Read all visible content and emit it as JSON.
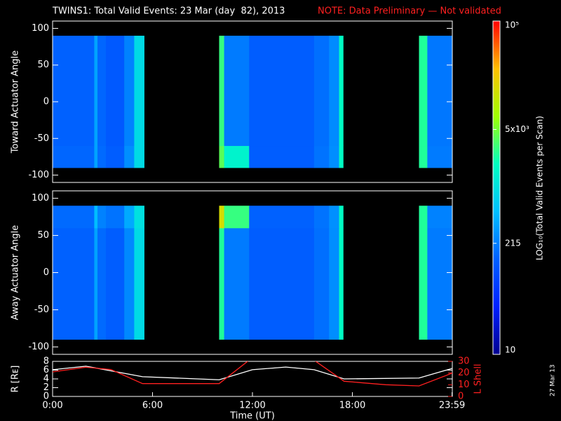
{
  "title": "TWINS1: Total Valid Events: 23 Mar (day  82), 2013",
  "note": "NOTE: Data Preliminary — Not validated",
  "footer_date": "27 Mar 13",
  "colorbar": {
    "label": "LOG₁₀(Total Valid Events per Scan)",
    "lim": [
      10,
      100000
    ],
    "log": true,
    "ticks": [
      {
        "value": 100000,
        "label": "10⁵"
      },
      {
        "value": 5000,
        "label": "5x10³"
      },
      215,
      10
    ],
    "colors": [
      "#000090",
      "#0020ff",
      "#0060ff",
      "#00c0ff",
      "#00ffc0",
      "#a0ff00",
      "#ffc000",
      "#ff0000"
    ]
  },
  "chart_data": [
    {
      "type": "heatmap",
      "ylabel": "Toward Actuator Angle",
      "xlim": [
        0,
        24
      ],
      "ylim": [
        -110,
        110
      ],
      "yticks": [
        -100,
        -50,
        0,
        50,
        100
      ],
      "time_bins": [
        0,
        2.5,
        2.7,
        3.2,
        4.3,
        4.9,
        5.5,
        10,
        10.3,
        11.8,
        15.7,
        16.6,
        17.2,
        17.45,
        22,
        22.5,
        24
      ],
      "ybins": [
        -90,
        -60,
        90
      ],
      "z": [
        [
          150,
          350,
          160,
          130,
          260,
          900,
          null,
          4000,
          1500,
          130,
          180,
          260,
          1800,
          null,
          2500,
          200
        ],
        [
          140,
          350,
          150,
          120,
          220,
          900,
          null,
          3000,
          200,
          130,
          170,
          250,
          1800,
          null,
          2500,
          190
        ]
      ]
    },
    {
      "type": "heatmap",
      "ylabel": "Away Actuator Angle",
      "xlim": [
        0,
        24
      ],
      "ylim": [
        -110,
        110
      ],
      "yticks": [
        -100,
        -50,
        0,
        50,
        100
      ],
      "time_bins": [
        0,
        2.5,
        2.7,
        3.2,
        4.3,
        4.9,
        5.5,
        10,
        10.3,
        11.8,
        15.7,
        16.6,
        17.2,
        17.45,
        22,
        22.5,
        24
      ],
      "ybins": [
        -90,
        60,
        90
      ],
      "z": [
        [
          140,
          350,
          160,
          130,
          240,
          900,
          null,
          2500,
          200,
          130,
          170,
          260,
          1800,
          null,
          2500,
          200
        ],
        [
          160,
          500,
          220,
          180,
          380,
          1000,
          null,
          15000,
          3000,
          140,
          180,
          270,
          1800,
          null,
          2500,
          220
        ]
      ]
    },
    {
      "type": "line",
      "ylabel": "R [Rᴇ]",
      "y2label": "L Shell",
      "xlabel": "Time (UT)",
      "xlim": [
        0,
        24
      ],
      "xticks": [
        {
          "value": 0,
          "label": "0:00"
        },
        {
          "value": 6,
          "label": "6:00"
        },
        {
          "value": 12,
          "label": "12:00"
        },
        {
          "value": 18,
          "label": "18:00"
        },
        {
          "value": 23.983,
          "label": "23:59"
        }
      ],
      "ylim": [
        0,
        8
      ],
      "yticks": [
        0,
        2,
        4,
        6,
        8
      ],
      "y2lim": [
        0,
        30
      ],
      "y2ticks": [
        0,
        10,
        20,
        30
      ],
      "series": [
        {
          "color": "#ffffff",
          "x": [
            0,
            2,
            5.4,
            10,
            12,
            14,
            15.7,
            17.5,
            22,
            24
          ],
          "values": [
            6.1,
            6.9,
            4.5,
            3.8,
            6.1,
            6.7,
            6.1,
            4.0,
            4.2,
            6.4
          ]
        },
        {
          "color": "#ff2020",
          "axis": "y2",
          "x": [
            0,
            2,
            3.5,
            5.4,
            10,
            11.8,
            15.7,
            17.5,
            20,
            22,
            24
          ],
          "values": [
            21,
            25,
            23,
            11,
            11,
            31,
            31,
            13,
            10,
            9,
            20
          ]
        }
      ]
    }
  ]
}
